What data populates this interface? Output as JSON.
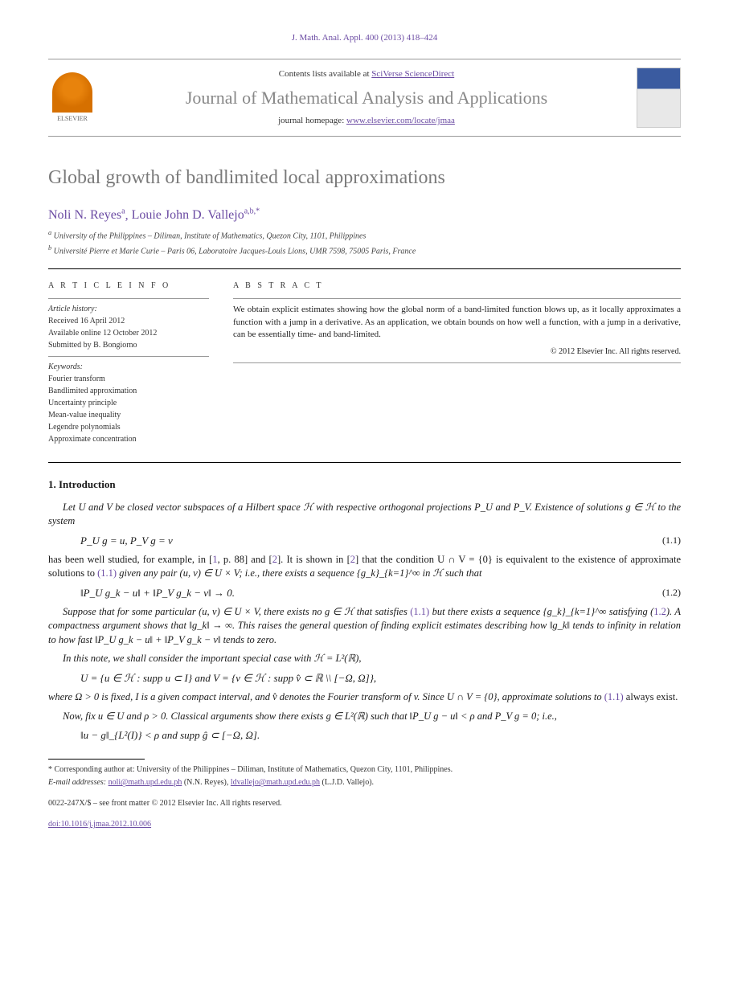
{
  "citation": "J. Math. Anal. Appl. 400 (2013) 418–424",
  "header": {
    "contents_prefix": "Contents lists available at ",
    "contents_link": "SciVerse ScienceDirect",
    "journal_name": "Journal of Mathematical Analysis and Applications",
    "homepage_prefix": "journal homepage: ",
    "homepage_link": "www.elsevier.com/locate/jmaa",
    "publisher": "ELSEVIER"
  },
  "title": "Global growth of bandlimited local approximations",
  "authors": [
    {
      "name": "Noli N. Reyes",
      "marks": "a"
    },
    {
      "name": "Louie John D. Vallejo",
      "marks": "a,b,*"
    }
  ],
  "affiliations": [
    {
      "mark": "a",
      "text": "University of the Philippines – Diliman, Institute of Mathematics, Quezon City, 1101, Philippines"
    },
    {
      "mark": "b",
      "text": "Université Pierre et Marie Curie – Paris 06, Laboratoire Jacques-Louis Lions, UMR 7598, 75005 Paris, France"
    }
  ],
  "article_info": {
    "header": "A R T I C L E   I N F O",
    "history_label": "Article history:",
    "received": "Received 16 April 2012",
    "online": "Available online 12 October 2012",
    "submitted": "Submitted by B. Bongiorno",
    "keywords_label": "Keywords:",
    "keywords": [
      "Fourier transform",
      "Bandlimited approximation",
      "Uncertainty principle",
      "Mean-value inequality",
      "Legendre polynomials",
      "Approximate concentration"
    ]
  },
  "abstract": {
    "header": "A B S T R A C T",
    "text": "We obtain explicit estimates showing how the global norm of a band-limited function blows up, as it locally approximates a function with a jump in a derivative. As an application, we obtain bounds on how well a function, with a jump in a derivative, can be essentially time- and band-limited.",
    "copyright": "© 2012 Elsevier Inc. All rights reserved."
  },
  "sections": {
    "intro_header": "1.  Introduction",
    "p1": "Let U and V be closed vector subspaces of a Hilbert space ℋ with respective orthogonal projections P_U and P_V. Existence of solutions g ∈ ℋ to the system",
    "eq1": "P_U g = u,        P_V g = v",
    "eq1_num": "(1.1)",
    "p2a": "has been well studied, for example, in [",
    "p2_ref1": "1",
    "p2b": ", p. 88] and [",
    "p2_ref2": "2",
    "p2c": "]. It is shown in [",
    "p2_ref3": "2",
    "p2d": "] that the condition U ∩ V = {0} is equivalent to the existence of approximate solutions to ",
    "p2_ref4": "(1.1)",
    "p2e": " given any pair (u, v) ∈ U × V; i.e., there exists a sequence {g_k}_{k=1}^∞ in ℋ such that",
    "eq2": "‖P_U g_k − u‖ + ‖P_V g_k − v‖ → 0.",
    "eq2_num": "(1.2)",
    "p3a": "Suppose that for some particular (u, v) ∈ U × V, there exists no g ∈ ℋ that satisfies ",
    "p3_ref1": "(1.1)",
    "p3b": " but there exists a sequence {g_k}_{k=1}^∞ satisfying (",
    "p3_ref2": "1.2",
    "p3c": "). A compactness argument shows that ‖g_k‖ → ∞. This raises the general question of finding explicit estimates describing how ‖g_k‖ tends to infinity in relation to how fast ‖P_U g_k − u‖ + ‖P_V g_k − v‖ tends to zero.",
    "p4": "In this note, we shall consider the important special case with ℋ = L²(ℝ),",
    "eq3": "U = {u ∈ ℋ : supp u ⊂ I}   and   V = {v ∈ ℋ : supp v̂ ⊂ ℝ \\\\ [−Ω, Ω]},",
    "p5a": "where Ω > 0 is fixed, I is a given compact interval, and v̂ denotes the Fourier transform of v. Since U ∩ V = {0}, approximate solutions to ",
    "p5_ref1": "(1.1)",
    "p5b": " always exist.",
    "p6": "Now, fix u ∈ U and ρ > 0. Classical arguments show there exists g ∈ L²(ℝ) such that ‖P_U g − u‖ < ρ and P_V g = 0; i.e.,",
    "eq4": "‖u − g‖_{L²(I)} < ρ   and   supp ĝ ⊂ [−Ω, Ω]."
  },
  "footnotes": {
    "corr": "Corresponding author at: University of the Philippines – Diliman, Institute of Mathematics, Quezon City, 1101, Philippines.",
    "email_label": "E-mail addresses: ",
    "email1": "noli@math.upd.edu.ph",
    "email1_name": " (N.N. Reyes), ",
    "email2": "ldvallejo@math.upd.edu.ph",
    "email2_name": " (L.J.D. Vallejo)."
  },
  "bottom": {
    "issn": "0022-247X/$ – see front matter © 2012 Elsevier Inc. All rights reserved.",
    "doi_label": "doi:",
    "doi": "10.1016/j.jmaa.2012.10.006"
  }
}
